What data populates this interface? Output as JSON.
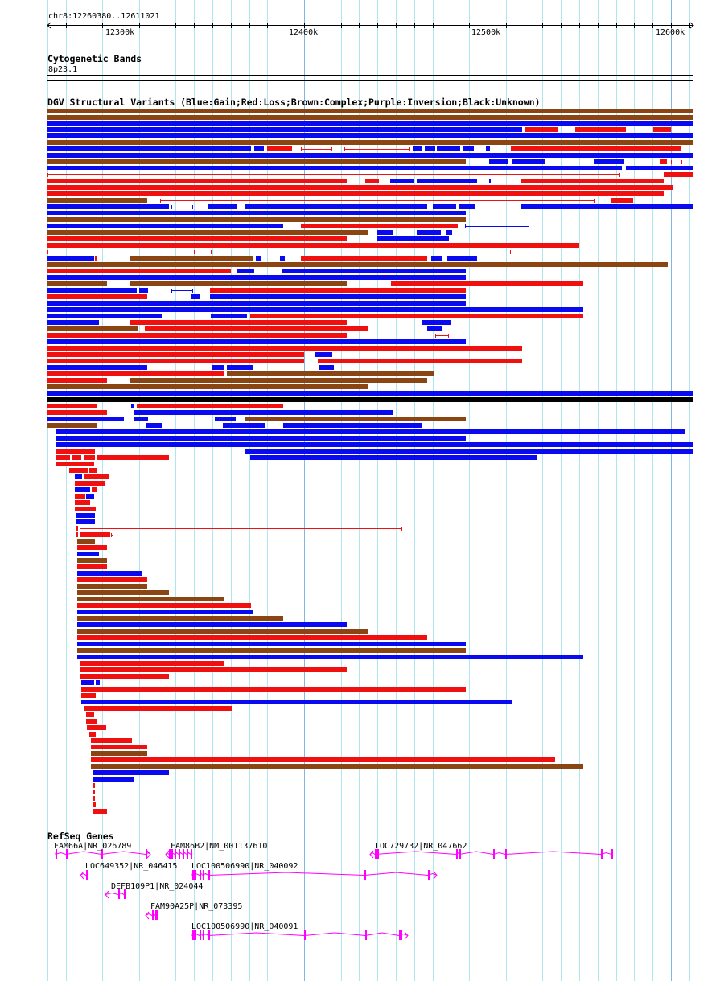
{
  "ruler": {
    "region": "chr8:12260380..12611021",
    "ticks": [
      "12300k",
      "12400k",
      "12500k",
      "12600k"
    ]
  },
  "cytoband": {
    "title": "Cytogenetic Bands",
    "band": "8p23.1"
  },
  "dgv": {
    "title": "DGV Structural Variants (Blue:Gain;Red:Loss;Brown:Complex;Purple:Inversion;Black:Unknown)",
    "legend": {
      "gain": "#0a0af0",
      "loss": "#f01010",
      "complex": "#8b4513",
      "unknown": "#000000"
    }
  },
  "refseq": {
    "title": "RefSeq Genes",
    "color": "#ff00ff",
    "genes": [
      {
        "label": "FAM66A|NR_026789"
      },
      {
        "label": "FAM86B2|NM_001137610"
      },
      {
        "label": "LOC729732|NR_047662"
      },
      {
        "label": "LOC649352|NR_046415"
      },
      {
        "label": "LOC100506990|NR_040092"
      },
      {
        "label": "DEFB109P1|NR_024044"
      },
      {
        "label": "FAM90A25P|NR_073395"
      },
      {
        "label": "LOC100506990|NR_040091"
      }
    ]
  }
}
